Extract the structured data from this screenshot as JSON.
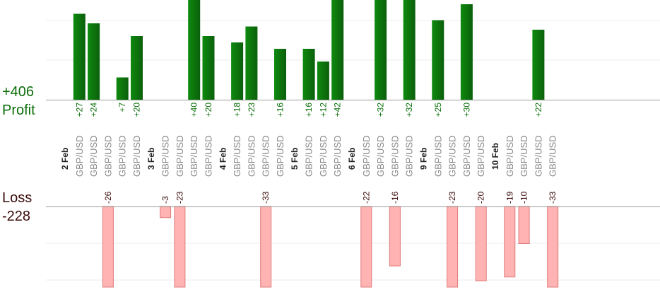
{
  "summary": {
    "profit_value": "+406",
    "profit_label": "Profit",
    "loss_label": "Loss",
    "loss_value": "-228"
  },
  "colors": {
    "profit_bar_dark": "#0b6b0b",
    "profit_bar_light": "#0e8a0e",
    "profit_text": "#0a6e0a",
    "loss_bar_fill": "#ffb3b3",
    "loss_bar_stroke": "#e07a7a",
    "loss_text": "#3a0a0a",
    "pair_text": "#888888",
    "date_text": "#222222"
  },
  "chart_data": {
    "type": "bar",
    "description_of_layout": "diverging profit/loss trade bars per slot",
    "slots": [
      {
        "date": "2 Feb"
      },
      {
        "pair": "GBP/USD",
        "profit": 27,
        "label": "+27"
      },
      {
        "pair": "GBP/USD",
        "profit": 24,
        "label": "+24"
      },
      {
        "pair": "GBP/USD",
        "loss": -26,
        "label": "-26"
      },
      {
        "pair": "GBP/USD",
        "profit": 7,
        "label": "+7"
      },
      {
        "pair": "GBP/USD",
        "profit": 20,
        "label": "+20"
      },
      {
        "date": "3 Feb"
      },
      {
        "pair": "GBP/USD",
        "loss": -3,
        "label": "-3"
      },
      {
        "pair": "GBP/USD",
        "loss": -23,
        "label": "-23"
      },
      {
        "pair": "GBP/USD",
        "profit": 40,
        "label": "+40"
      },
      {
        "pair": "GBP/USD",
        "profit": 20,
        "label": "+20"
      },
      {
        "date": "4 Feb"
      },
      {
        "pair": "GBP/USD",
        "profit": 18,
        "label": "+18"
      },
      {
        "pair": "GBP/USD",
        "profit": 23,
        "label": "+23"
      },
      {
        "pair": "GBP/USD",
        "loss": -33,
        "label": "-33"
      },
      {
        "pair": "GBP/USD",
        "profit": 16,
        "label": "+16"
      },
      {
        "date": "5 Feb"
      },
      {
        "pair": "GBP/USD",
        "profit": 16,
        "label": "+16"
      },
      {
        "pair": "GBP/USD",
        "profit": 12,
        "label": "+12"
      },
      {
        "pair": "GBP/USD",
        "profit": 42,
        "label": "+42"
      },
      {
        "date": "6 Feb"
      },
      {
        "pair": "GBP/USD",
        "loss": -22,
        "label": "-22"
      },
      {
        "pair": "GBP/USD",
        "profit": 32,
        "label": "+32"
      },
      {
        "pair": "GBP/USD",
        "loss": -16,
        "label": "-16"
      },
      {
        "pair": "GBP/USD",
        "profit": 32,
        "label": "+32"
      },
      {
        "date": "9 Feb"
      },
      {
        "pair": "GBP/USD",
        "profit": 25,
        "label": "+25"
      },
      {
        "pair": "GBP/USD",
        "loss": -23,
        "label": "-23"
      },
      {
        "pair": "GBP/USD",
        "profit": 30,
        "label": "+30"
      },
      {
        "pair": "GBP/USD",
        "loss": -20,
        "label": "-20"
      },
      {
        "date": "10 Feb"
      },
      {
        "pair": "GBP/USD",
        "loss": -19,
        "label": "-19"
      },
      {
        "pair": "GBP/USD",
        "loss": -10,
        "label": "-10"
      },
      {
        "pair": "GBP/USD",
        "profit": 22,
        "label": "+22"
      },
      {
        "pair": "GBP/USD",
        "loss": -33,
        "label": "-33"
      }
    ],
    "profit_ylim": [
      0,
      25
    ],
    "loss_ylim": [
      0,
      21
    ],
    "grid": true
  }
}
